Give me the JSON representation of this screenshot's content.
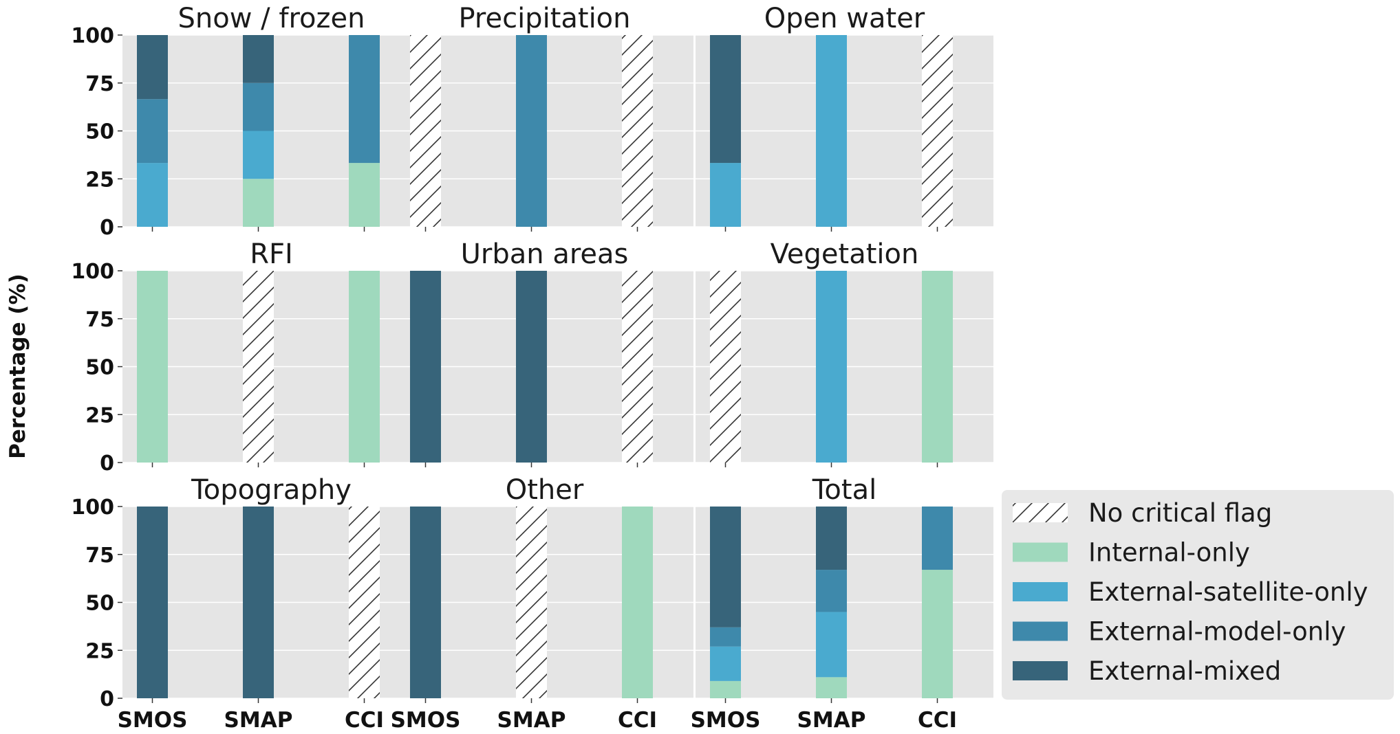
{
  "chart_data": {
    "type": "bar",
    "stacked": true,
    "layout": "3x3 grid of small multiples",
    "ylabel": "Percentage (%)",
    "ylim": [
      0,
      100
    ],
    "yticks": [
      0,
      25,
      50,
      75,
      100
    ],
    "categories": [
      "SMOS",
      "SMAP",
      "CCI"
    ],
    "series": [
      {
        "name": "Internal-only",
        "color": "#9fd9bd"
      },
      {
        "name": "External-satellite-only",
        "color": "#4aaacf"
      },
      {
        "name": "External-model-only",
        "color": "#3e89ab"
      },
      {
        "name": "External-mixed",
        "color": "#37647a"
      }
    ],
    "no_flag_label": "No critical flag",
    "panels": [
      {
        "title": "Snow / frozen",
        "bars": {
          "SMOS": {
            "no_flag": false,
            "values": [
              0,
              33.3,
              33.3,
              33.4
            ]
          },
          "SMAP": {
            "no_flag": false,
            "values": [
              25,
              25,
              25,
              25
            ]
          },
          "CCI": {
            "no_flag": false,
            "values": [
              33.3,
              0,
              66.7,
              0
            ]
          }
        }
      },
      {
        "title": "Precipitation",
        "bars": {
          "SMOS": {
            "no_flag": true,
            "values": [
              0,
              0,
              0,
              0
            ]
          },
          "SMAP": {
            "no_flag": false,
            "values": [
              0,
              0,
              100,
              0
            ]
          },
          "CCI": {
            "no_flag": true,
            "values": [
              0,
              0,
              0,
              0
            ]
          }
        }
      },
      {
        "title": "Open water",
        "bars": {
          "SMOS": {
            "no_flag": false,
            "values": [
              0,
              33.3,
              0,
              66.7
            ]
          },
          "SMAP": {
            "no_flag": false,
            "values": [
              0,
              100,
              0,
              0
            ]
          },
          "CCI": {
            "no_flag": true,
            "values": [
              0,
              0,
              0,
              0
            ]
          }
        }
      },
      {
        "title": "RFI",
        "bars": {
          "SMOS": {
            "no_flag": false,
            "values": [
              100,
              0,
              0,
              0
            ]
          },
          "SMAP": {
            "no_flag": true,
            "values": [
              0,
              0,
              0,
              0
            ]
          },
          "CCI": {
            "no_flag": false,
            "values": [
              100,
              0,
              0,
              0
            ]
          }
        }
      },
      {
        "title": "Urban areas",
        "bars": {
          "SMOS": {
            "no_flag": false,
            "values": [
              0,
              0,
              0,
              100
            ]
          },
          "SMAP": {
            "no_flag": false,
            "values": [
              0,
              0,
              0,
              100
            ]
          },
          "CCI": {
            "no_flag": true,
            "values": [
              0,
              0,
              0,
              0
            ]
          }
        }
      },
      {
        "title": "Vegetation",
        "bars": {
          "SMOS": {
            "no_flag": true,
            "values": [
              0,
              0,
              0,
              0
            ]
          },
          "SMAP": {
            "no_flag": false,
            "values": [
              0,
              100,
              0,
              0
            ]
          },
          "CCI": {
            "no_flag": false,
            "values": [
              100,
              0,
              0,
              0
            ]
          }
        }
      },
      {
        "title": "Topography",
        "bars": {
          "SMOS": {
            "no_flag": false,
            "values": [
              0,
              0,
              0,
              100
            ]
          },
          "SMAP": {
            "no_flag": false,
            "values": [
              0,
              0,
              0,
              100
            ]
          },
          "CCI": {
            "no_flag": true,
            "values": [
              0,
              0,
              0,
              0
            ]
          }
        }
      },
      {
        "title": "Other",
        "bars": {
          "SMOS": {
            "no_flag": false,
            "values": [
              0,
              0,
              0,
              100
            ]
          },
          "SMAP": {
            "no_flag": true,
            "values": [
              0,
              0,
              0,
              0
            ]
          },
          "CCI": {
            "no_flag": false,
            "values": [
              100,
              0,
              0,
              0
            ]
          }
        }
      },
      {
        "title": "Total",
        "bars": {
          "SMOS": {
            "no_flag": false,
            "values": [
              9,
              18,
              10,
              63
            ]
          },
          "SMAP": {
            "no_flag": false,
            "values": [
              11,
              34,
              22,
              33
            ]
          },
          "CCI": {
            "no_flag": false,
            "values": [
              67,
              0,
              33,
              0
            ]
          }
        }
      }
    ]
  }
}
